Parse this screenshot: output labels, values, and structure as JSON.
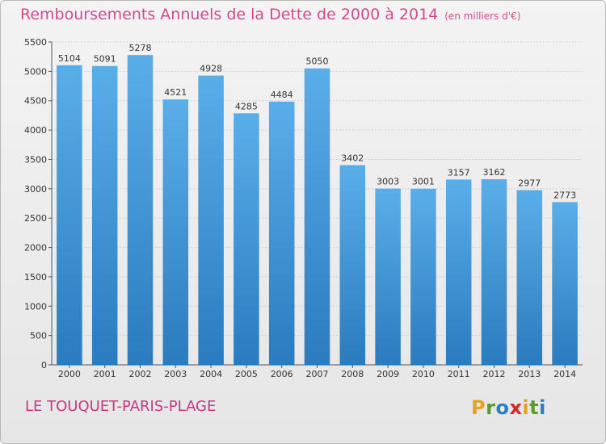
{
  "chart_data": {
    "type": "bar",
    "title": "Remboursements Annuels de la Dette de 2000 à 2014",
    "subtitle": "(en milliers d'€)",
    "categories": [
      "2000",
      "2001",
      "2002",
      "2003",
      "2004",
      "2005",
      "2006",
      "2007",
      "2008",
      "2009",
      "2010",
      "2011",
      "2012",
      "2013",
      "2014"
    ],
    "values": [
      5104,
      5091,
      5278,
      4521,
      4928,
      4285,
      4484,
      5050,
      3402,
      3003,
      3001,
      3157,
      3162,
      2977,
      2773
    ],
    "ylim": [
      0,
      5500
    ],
    "yticks": [
      "0",
      "500",
      "1000",
      "1500",
      "2000",
      "2500",
      "3000",
      "3500",
      "4000",
      "4500",
      "5000",
      "5500"
    ],
    "grid": true,
    "bar_color_top": "#5aaee8",
    "bar_color_bottom": "#2a7bbf"
  },
  "footer": {
    "town": "LE TOUQUET-PARIS-PLAGE",
    "logo_letters": [
      "P",
      "r",
      "o",
      "x",
      "i",
      "t",
      "i"
    ],
    "logo_colors": [
      "#e3a320",
      "#5b9a2e",
      "#2b7fc1",
      "#d9262a",
      "#e3a320",
      "#5b9a2e",
      "#2b7fc1"
    ]
  },
  "colors": {
    "title": "#d04a8c",
    "town": "#c7377f"
  }
}
